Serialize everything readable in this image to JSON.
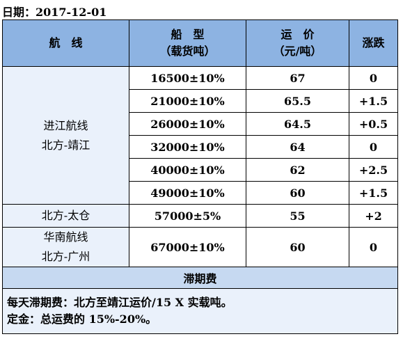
{
  "date_label": "日期：2017-12-01",
  "headers": {
    "route": "航　线",
    "ship_type_line1": "船　型",
    "ship_type_line2": "（载货吨）",
    "freight_line1": "运　价",
    "freight_line2": "（元/吨）",
    "change": "涨跌"
  },
  "groups": [
    {
      "route_lines": [
        "进江航线",
        "北方-靖江"
      ],
      "rows": [
        {
          "ship": "16500±10%",
          "freight": "67",
          "change": "0"
        },
        {
          "ship": "21000±10%",
          "freight": "65.5",
          "change": "+1.5"
        },
        {
          "ship": "26000±10%",
          "freight": "64.5",
          "change": "+0.5"
        },
        {
          "ship": "32000±10%",
          "freight": "64",
          "change": "0"
        },
        {
          "ship": "40000±10%",
          "freight": "62",
          "change": "+2.5"
        },
        {
          "ship": "49000±10%",
          "freight": "60",
          "change": "+1.5"
        }
      ]
    },
    {
      "route_lines": [
        "北方-太仓"
      ],
      "rows": [
        {
          "ship": "57000±5%",
          "freight": "55",
          "change": "+2"
        }
      ]
    },
    {
      "route_lines": [
        "华南航线",
        "北方-广州"
      ],
      "rows": [
        {
          "ship": "67000±10%",
          "freight": "60",
          "change": "0"
        }
      ]
    }
  ],
  "demurrage": {
    "title": "滞期费",
    "note1": "每天滞期费：北方至靖江运价/15 X 实载吨。",
    "note2": "定金：总运费的 15%-20%。"
  }
}
